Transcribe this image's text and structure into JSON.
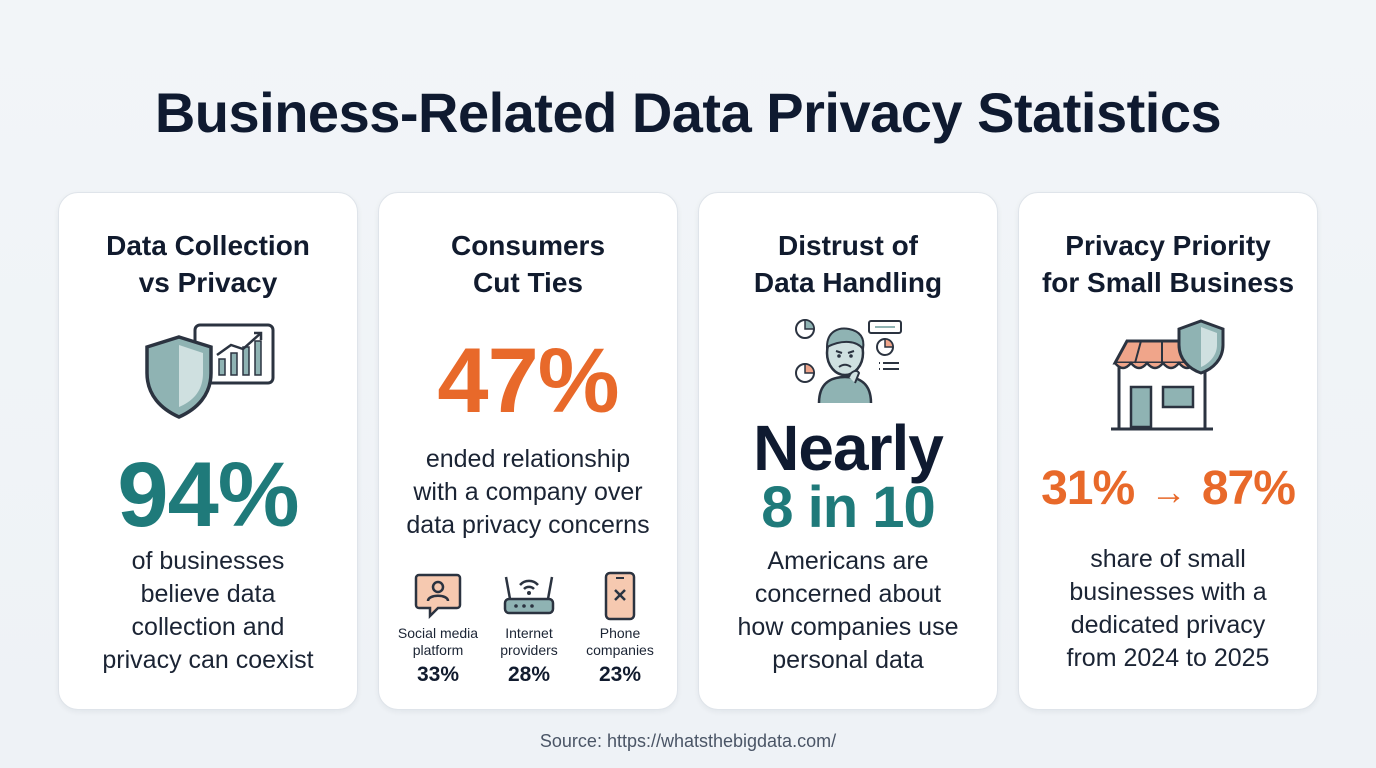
{
  "title": "Business-Related Data Privacy Statistics",
  "cards": [
    {
      "title_lines": [
        "Data Collection",
        "vs Privacy"
      ],
      "stat": "94%",
      "desc_lines": [
        "of businesses",
        "believe data",
        "collection and",
        "privacy can coexist"
      ],
      "icon": "shield-chart-icon"
    },
    {
      "title_lines": [
        "Consumers",
        "Cut Ties"
      ],
      "stat": "47%",
      "desc_lines": [
        "ended relationship",
        "with a company over",
        "data privacy concerns"
      ],
      "breakdown": [
        {
          "label_lines": [
            "Social media",
            "platform"
          ],
          "value": "33%",
          "icon": "social-media-icon"
        },
        {
          "label_lines": [
            "Internet",
            "providers"
          ],
          "value": "28%",
          "icon": "router-icon"
        },
        {
          "label_lines": [
            "Phone",
            "companies"
          ],
          "value": "23%",
          "icon": "phone-icon"
        }
      ]
    },
    {
      "title_lines": [
        "Distrust of",
        "Data Handling"
      ],
      "stat_line1": "Nearly",
      "stat_line2": "8 in 10",
      "desc_lines": [
        "Americans are",
        "concerned about",
        "how companies use",
        "personal data"
      ],
      "icon": "concerned-person-icon"
    },
    {
      "title_lines": [
        "Privacy Priority",
        "for Small Business"
      ],
      "stat_from": "31%",
      "stat_arrow": "→",
      "stat_to": "87%",
      "desc_lines": [
        "share of small",
        "businesses with a",
        "dedicated privacy",
        "from 2024 to 2025"
      ],
      "icon": "storefront-shield-icon"
    }
  ],
  "source": "Source: https://whatsthebigdata.com/",
  "colors": {
    "teal": "#1f7a7a",
    "orange": "#e8692a",
    "navy": "#0f1a30",
    "shield": "#8fb3b3",
    "awning": "#f0a58a"
  }
}
